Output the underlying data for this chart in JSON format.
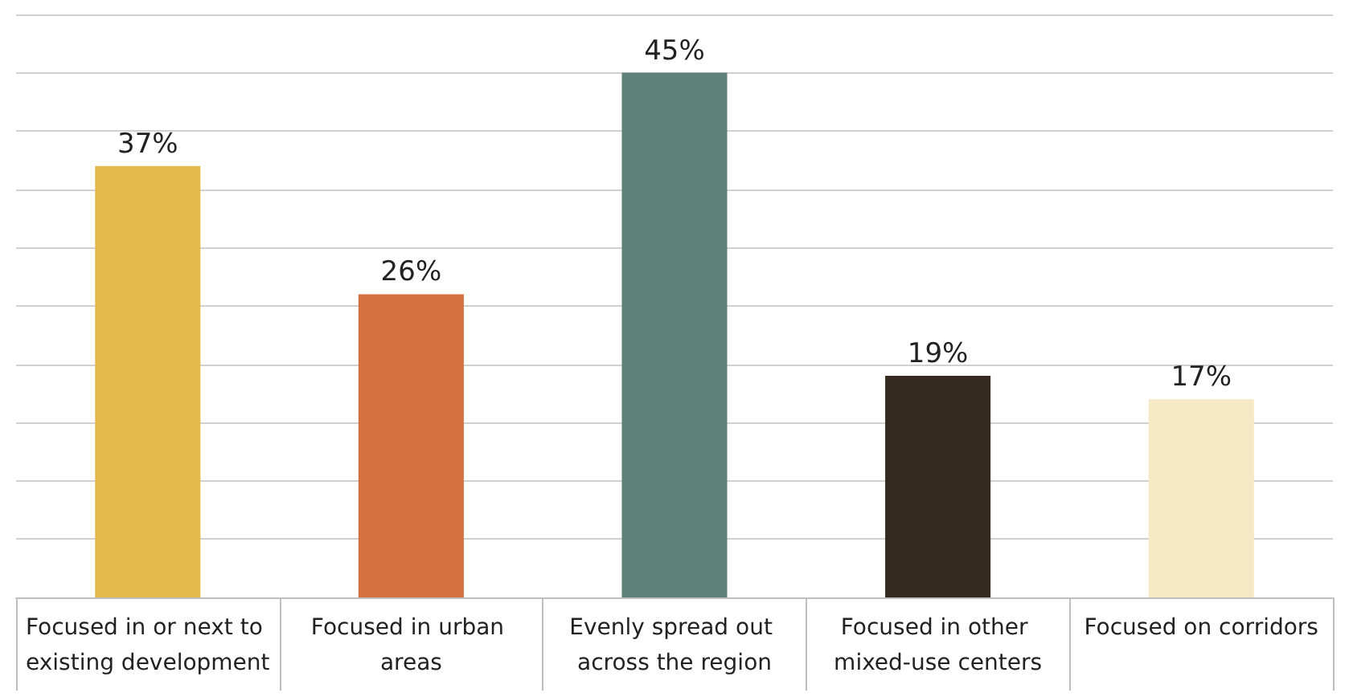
{
  "chart_data": {
    "type": "bar",
    "categories": [
      "Focused in or next to existing development",
      "Focused in urban areas",
      "Evenly spread out across the region",
      "Focused in other mixed-use centers",
      "Focused on corridors"
    ],
    "values": [
      37,
      26,
      45,
      19,
      17
    ],
    "colors": [
      "#e3b94b",
      "#d3703d",
      "#5f7f79",
      "#352a1f",
      "#f6e9c6"
    ],
    "value_labels": [
      "37%",
      "26%",
      "45%",
      "19%",
      "17%"
    ],
    "ylim": [
      0,
      50
    ],
    "yticks": [
      {
        "value": 0,
        "label": null
      },
      {
        "value": 5,
        "label": null
      },
      {
        "value": 10,
        "label": null
      },
      {
        "value": 15,
        "label": null
      },
      {
        "value": 20,
        "label": null
      },
      {
        "value": 25,
        "label": null
      },
      {
        "value": 30,
        "label": null
      },
      {
        "value": 35,
        "label": null
      },
      {
        "value": 40,
        "label": null
      },
      {
        "value": 45,
        "label": null
      },
      {
        "value": 50,
        "label": null
      }
    ],
    "tick_labels": "x",
    "grid": "y"
  }
}
